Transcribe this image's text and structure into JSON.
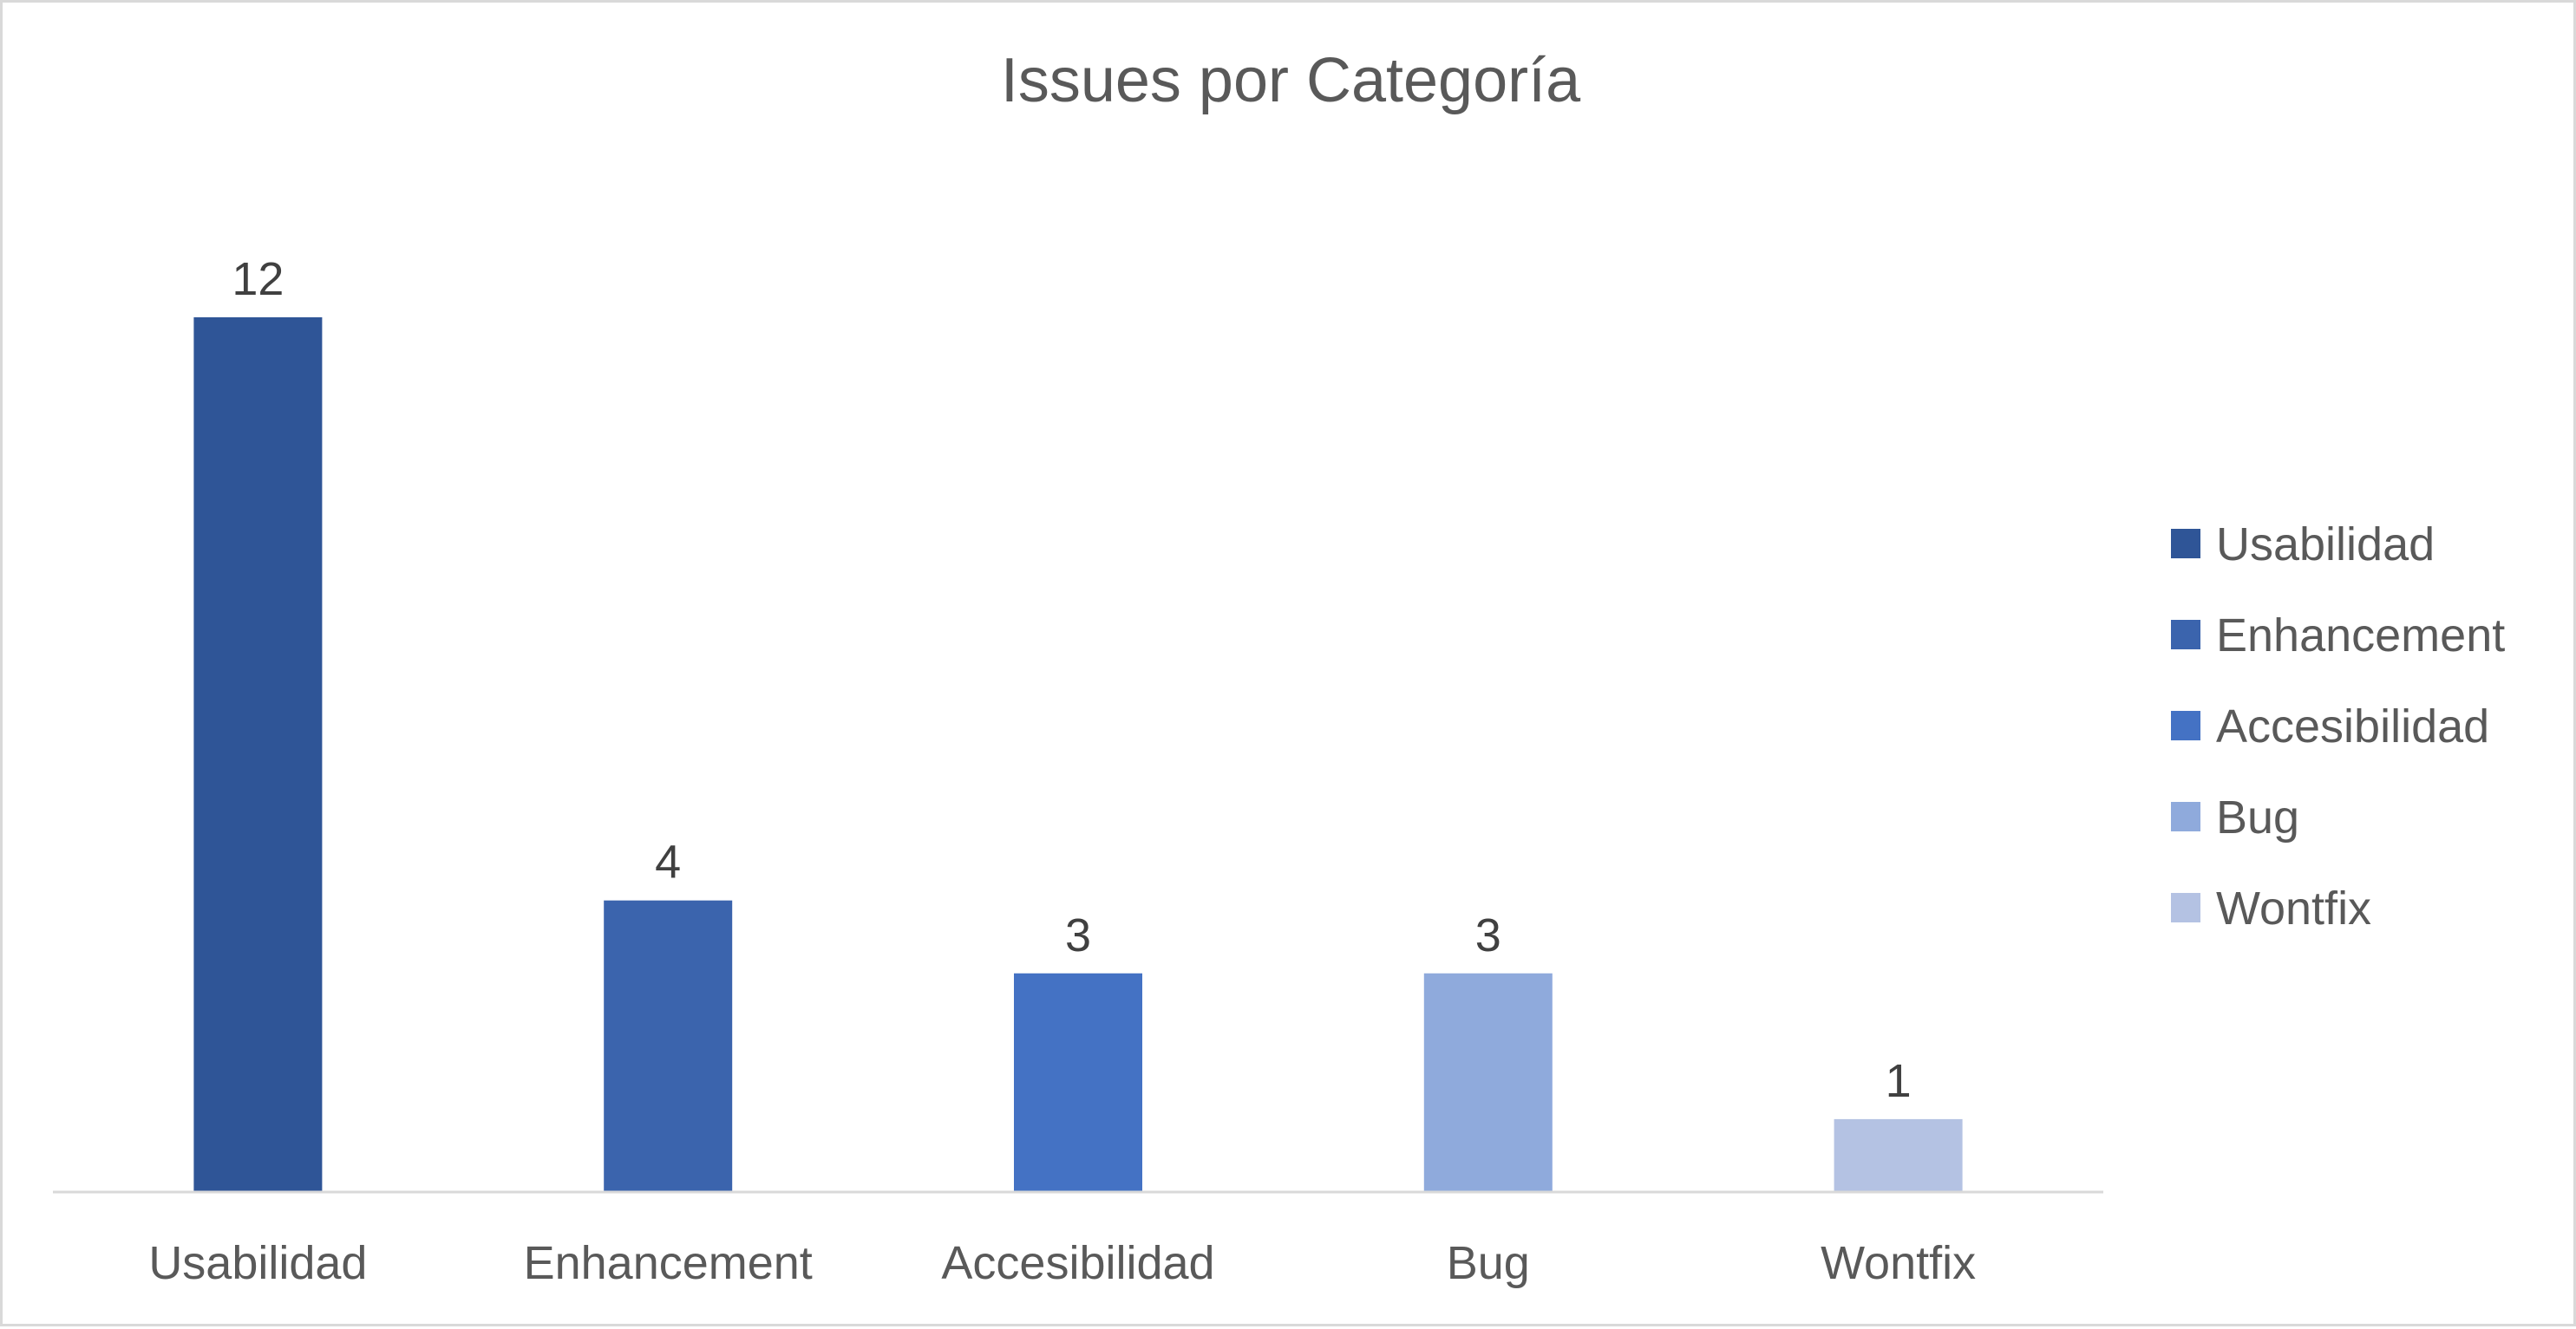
{
  "chart_data": {
    "type": "bar",
    "title": "Issues por Categoría",
    "xlabel": "",
    "ylabel": "",
    "categories": [
      "Usabilidad",
      "Enhancement",
      "Accesibilidad",
      "Bug",
      "Wontfix"
    ],
    "values": [
      12,
      4,
      3,
      3,
      1
    ],
    "colors": [
      "#2f5597",
      "#3b64ad",
      "#4472c4",
      "#8faadc",
      "#b4c2e3"
    ],
    "ylim": [
      0,
      12
    ],
    "grid": false,
    "legend": {
      "placement": "right",
      "entries": [
        "Usabilidad",
        "Enhancement",
        "Accesibilidad",
        "Bug",
        "Wontfix"
      ]
    },
    "data_labels": true
  }
}
